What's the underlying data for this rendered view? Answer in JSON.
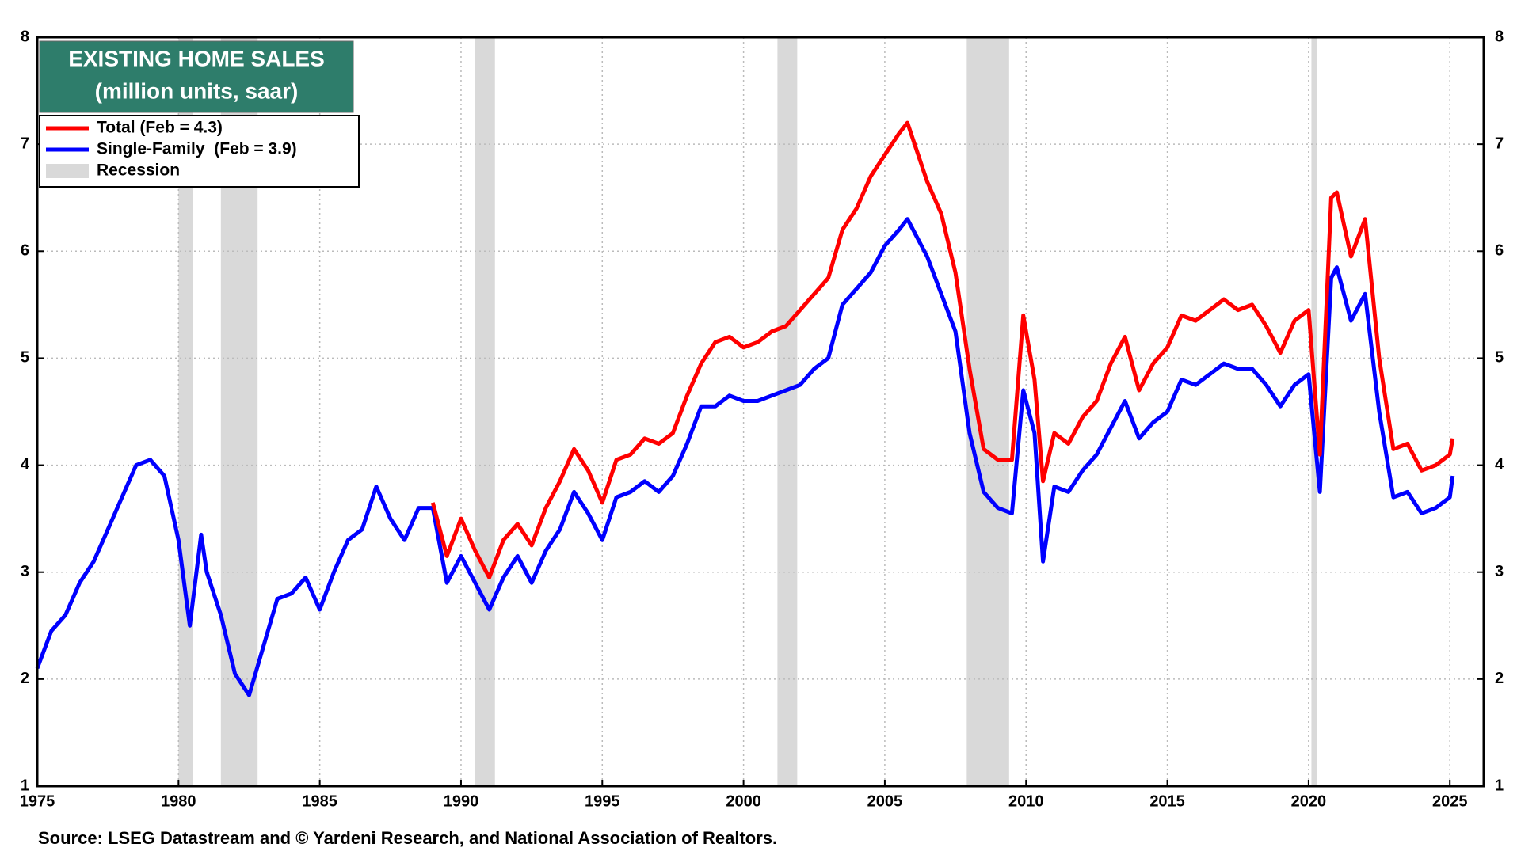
{
  "chart_data": {
    "type": "line",
    "title": "EXISTING HOME SALES",
    "subtitle": "(million units, saar)",
    "source": "Source: LSEG Datastream and © Yardeni Research, and National Association of Realtors.",
    "xlim": [
      1975,
      2026.2
    ],
    "xticks": [
      1975,
      1980,
      1985,
      1990,
      1995,
      2000,
      2005,
      2010,
      2015,
      2020,
      2025
    ],
    "ylim": [
      1,
      8
    ],
    "yticks": [
      1,
      2,
      3,
      4,
      5,
      6,
      7,
      8
    ],
    "grid": true,
    "legend": "upper left",
    "recessions": {
      "name": "Recession",
      "color": "#d9d9d9",
      "periods": [
        [
          1980.0,
          1980.5
        ],
        [
          1981.5,
          1982.8
        ],
        [
          1990.5,
          1991.2
        ],
        [
          2001.2,
          2001.9
        ],
        [
          2007.9,
          2009.4
        ],
        [
          2020.1,
          2020.3
        ]
      ]
    },
    "series": [
      {
        "name": "Total (Feb = 4.3)",
        "color": "#ff0000",
        "x": [
          1989.0,
          1989.5,
          1990.0,
          1990.5,
          1991.0,
          1991.5,
          1992.0,
          1992.5,
          1993.0,
          1993.5,
          1994.0,
          1994.5,
          1995.0,
          1995.5,
          1996.0,
          1996.5,
          1997.0,
          1997.5,
          1998.0,
          1998.5,
          1999.0,
          1999.5,
          2000.0,
          2000.5,
          2001.0,
          2001.5,
          2002.0,
          2002.5,
          2003.0,
          2003.5,
          2004.0,
          2004.5,
          2005.0,
          2005.5,
          2005.8,
          2006.5,
          2007.0,
          2007.5,
          2008.0,
          2008.5,
          2009.0,
          2009.5,
          2009.9,
          2010.3,
          2010.6,
          2011.0,
          2011.5,
          2012.0,
          2012.5,
          2013.0,
          2013.5,
          2014.0,
          2014.5,
          2015.0,
          2015.5,
          2016.0,
          2016.5,
          2017.0,
          2017.5,
          2018.0,
          2018.5,
          2019.0,
          2019.5,
          2020.0,
          2020.4,
          2020.8,
          2021.0,
          2021.5,
          2022.0,
          2022.5,
          2023.0,
          2023.5,
          2024.0,
          2024.5,
          2025.0,
          2025.1
        ],
        "values": [
          3.65,
          3.15,
          3.5,
          3.2,
          2.95,
          3.3,
          3.45,
          3.25,
          3.6,
          3.85,
          4.15,
          3.95,
          3.65,
          4.05,
          4.1,
          4.25,
          4.2,
          4.3,
          4.65,
          4.95,
          5.15,
          5.2,
          5.1,
          5.15,
          5.25,
          5.3,
          5.45,
          5.6,
          5.75,
          6.2,
          6.4,
          6.7,
          6.9,
          7.1,
          7.2,
          6.65,
          6.35,
          5.8,
          4.9,
          4.15,
          4.05,
          4.05,
          5.4,
          4.8,
          3.85,
          4.3,
          4.2,
          4.45,
          4.6,
          4.95,
          5.2,
          4.7,
          4.95,
          5.1,
          5.4,
          5.35,
          5.45,
          5.55,
          5.45,
          5.5,
          5.3,
          5.05,
          5.35,
          5.45,
          4.1,
          6.5,
          6.55,
          5.95,
          6.3,
          5.0,
          4.15,
          4.2,
          3.95,
          4.0,
          4.1,
          4.25
        ]
      },
      {
        "name": "Single-Family  (Feb = 3.9)",
        "color": "#0000ff",
        "x": [
          1975.0,
          1975.5,
          1976.0,
          1976.5,
          1977.0,
          1977.5,
          1978.0,
          1978.5,
          1979.0,
          1979.5,
          1980.0,
          1980.4,
          1980.8,
          1981.0,
          1981.5,
          1982.0,
          1982.5,
          1983.0,
          1983.5,
          1984.0,
          1984.5,
          1985.0,
          1985.5,
          1986.0,
          1986.5,
          1987.0,
          1987.5,
          1988.0,
          1988.5,
          1989.0,
          1989.5,
          1990.0,
          1990.5,
          1991.0,
          1991.5,
          1992.0,
          1992.5,
          1993.0,
          1993.5,
          1994.0,
          1994.5,
          1995.0,
          1995.5,
          1996.0,
          1996.5,
          1997.0,
          1997.5,
          1998.0,
          1998.5,
          1999.0,
          1999.5,
          2000.0,
          2000.5,
          2001.0,
          2001.5,
          2002.0,
          2002.5,
          2003.0,
          2003.5,
          2004.0,
          2004.5,
          2005.0,
          2005.5,
          2005.8,
          2006.5,
          2007.0,
          2007.5,
          2008.0,
          2008.5,
          2009.0,
          2009.5,
          2009.9,
          2010.3,
          2010.6,
          2011.0,
          2011.5,
          2012.0,
          2012.5,
          2013.0,
          2013.5,
          2014.0,
          2014.5,
          2015.0,
          2015.5,
          2016.0,
          2016.5,
          2017.0,
          2017.5,
          2018.0,
          2018.5,
          2019.0,
          2019.5,
          2020.0,
          2020.4,
          2020.8,
          2021.0,
          2021.5,
          2022.0,
          2022.5,
          2023.0,
          2023.5,
          2024.0,
          2024.5,
          2025.0,
          2025.1
        ],
        "values": [
          2.1,
          2.45,
          2.6,
          2.9,
          3.1,
          3.4,
          3.7,
          4.0,
          4.05,
          3.9,
          3.3,
          2.5,
          3.35,
          3.0,
          2.6,
          2.05,
          1.85,
          2.3,
          2.75,
          2.8,
          2.95,
          2.65,
          3.0,
          3.3,
          3.4,
          3.8,
          3.5,
          3.3,
          3.6,
          3.6,
          2.9,
          3.15,
          2.9,
          2.65,
          2.95,
          3.15,
          2.9,
          3.2,
          3.4,
          3.75,
          3.55,
          3.3,
          3.7,
          3.75,
          3.85,
          3.75,
          3.9,
          4.2,
          4.55,
          4.55,
          4.65,
          4.6,
          4.6,
          4.65,
          4.7,
          4.75,
          4.9,
          5.0,
          5.5,
          5.65,
          5.8,
          6.05,
          6.2,
          6.3,
          5.95,
          5.6,
          5.25,
          4.3,
          3.75,
          3.6,
          3.55,
          4.7,
          4.3,
          3.1,
          3.8,
          3.75,
          3.95,
          4.1,
          4.35,
          4.6,
          4.25,
          4.4,
          4.5,
          4.8,
          4.75,
          4.85,
          4.95,
          4.9,
          4.9,
          4.75,
          4.55,
          4.75,
          4.85,
          3.75,
          5.75,
          5.85,
          5.35,
          5.6,
          4.5,
          3.7,
          3.75,
          3.55,
          3.6,
          3.7,
          3.9
        ]
      }
    ]
  }
}
